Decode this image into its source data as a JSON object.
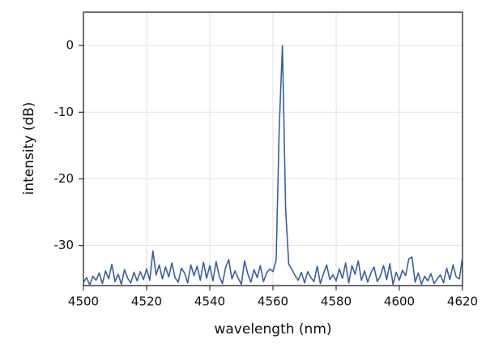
{
  "chart_data": {
    "type": "line",
    "xlabel": "wavelength (nm)",
    "ylabel": "intensity (dB)",
    "color": "#3a5fa0",
    "grid": true,
    "xlim": [
      4500,
      4620
    ],
    "xticks": [
      4500,
      4520,
      4540,
      4560,
      4580,
      4600,
      4620
    ],
    "ylim": [
      -36,
      5
    ],
    "yticks": [
      -30,
      -20,
      -10,
      0
    ],
    "x": [
      4500,
      4501,
      4502,
      4503,
      4504,
      4505,
      4506,
      4507,
      4508,
      4509,
      4510,
      4511,
      4512,
      4513,
      4514,
      4515,
      4516,
      4517,
      4518,
      4519,
      4520,
      4521,
      4522,
      4523,
      4524,
      4525,
      4526,
      4527,
      4528,
      4529,
      4530,
      4531,
      4532,
      4533,
      4534,
      4535,
      4536,
      4537,
      4538,
      4539,
      4540,
      4541,
      4542,
      4543,
      4544,
      4545,
      4546,
      4547,
      4548,
      4549,
      4550,
      4551,
      4552,
      4553,
      4554,
      4555,
      4556,
      4557,
      4558,
      4559,
      4560,
      4561,
      4562,
      4563,
      4564,
      4565,
      4566,
      4567,
      4568,
      4569,
      4570,
      4571,
      4572,
      4573,
      4574,
      4575,
      4576,
      4577,
      4578,
      4579,
      4580,
      4581,
      4582,
      4583,
      4584,
      4585,
      4586,
      4587,
      4588,
      4589,
      4590,
      4591,
      4592,
      4593,
      4594,
      4595,
      4596,
      4597,
      4598,
      4599,
      4600,
      4601,
      4602,
      4603,
      4604,
      4605,
      4606,
      4607,
      4608,
      4609,
      4610,
      4611,
      4612,
      4613,
      4614,
      4615,
      4616,
      4617,
      4618,
      4619,
      4620
    ],
    "values": [
      -35.5,
      -34.8,
      -35.9,
      -34.6,
      -35.2,
      -34.1,
      -35.7,
      -33.8,
      -35.0,
      -32.8,
      -35.4,
      -34.3,
      -35.8,
      -33.6,
      -34.9,
      -35.6,
      -34.0,
      -35.3,
      -33.9,
      -35.1,
      -33.5,
      -35.2,
      -30.8,
      -34.4,
      -32.9,
      -35.0,
      -33.2,
      -34.7,
      -32.6,
      -34.8,
      -35.5,
      -33.4,
      -34.1,
      -35.6,
      -32.9,
      -34.5,
      -33.1,
      -35.2,
      -32.5,
      -34.9,
      -33.0,
      -35.3,
      -32.4,
      -34.6,
      -35.7,
      -33.3,
      -32.1,
      -35.0,
      -33.8,
      -34.9,
      -35.8,
      -32.3,
      -34.2,
      -35.5,
      -33.6,
      -34.8,
      -33.0,
      -35.4,
      -34.1,
      -33.5,
      -33.9,
      -32.2,
      -12.0,
      0,
      -24.5,
      -32.8,
      -33.6,
      -34.5,
      -35.2,
      -34.0,
      -35.6,
      -33.9,
      -34.8,
      -35.4,
      -33.1,
      -35.7,
      -34.2,
      -32.9,
      -35.1,
      -34.4,
      -35.3,
      -33.5,
      -34.9,
      -32.6,
      -35.6,
      -33.0,
      -34.3,
      -32.3,
      -35.2,
      -33.8,
      -35.5,
      -34.1,
      -33.2,
      -35.4,
      -34.6,
      -33.0,
      -35.1,
      -32.7,
      -35.8,
      -34.0,
      -35.2,
      -33.7,
      -34.5,
      -32.0,
      -31.7,
      -35.5,
      -34.1,
      -35.8,
      -34.6,
      -35.3,
      -34.2,
      -35.7,
      -35.0,
      -34.4,
      -35.6,
      -33.4,
      -35.1,
      -32.9,
      -34.7,
      -35.0,
      -31.7
    ]
  }
}
